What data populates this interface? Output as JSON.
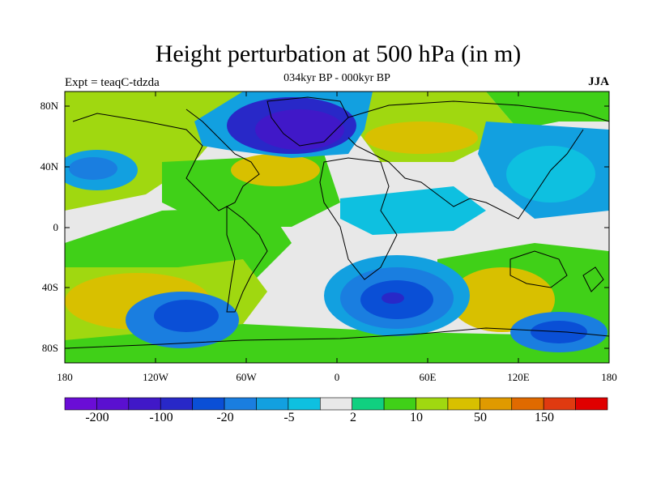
{
  "title": "Height perturbation at 500 hPa (in m)",
  "subtitle": "034kyr BP - 000kyr BP",
  "left_label": "Expt = teaqC-tdzda",
  "right_label": "JJA",
  "lat_labels": [
    "80N",
    "40N",
    "0",
    "40S",
    "80S"
  ],
  "lon_labels": [
    "180",
    "120W",
    "60W",
    "0",
    "60E",
    "120E",
    "180"
  ],
  "colorbar": {
    "colors": [
      "#6a0dd6",
      "#5a10d0",
      "#4018c8",
      "#2828c8",
      "#0a4fd6",
      "#1a7ee0",
      "#12a0e0",
      "#0ec0e0",
      "#e8e8e8",
      "#10d080",
      "#40d018",
      "#a0d810",
      "#d8c000",
      "#e09a00",
      "#e06a00",
      "#e03a10",
      "#e00000"
    ],
    "labels": [
      "-200",
      "-100",
      "-20",
      "-5",
      "2",
      "10",
      "50",
      "150"
    ]
  }
}
